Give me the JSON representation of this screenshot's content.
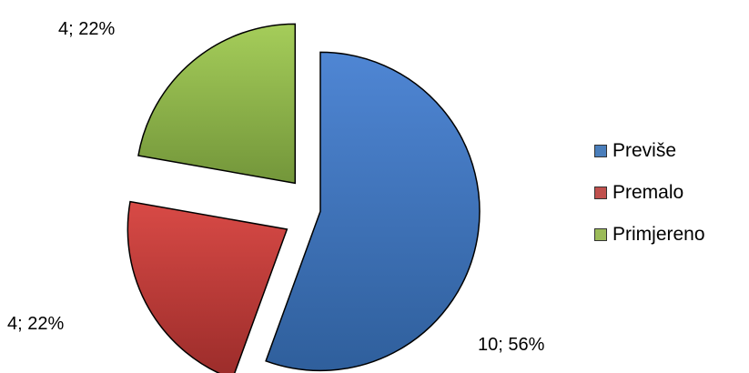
{
  "chart_data": {
    "type": "pie",
    "exploded": true,
    "categories": [
      "Previše",
      "Premalo",
      "Primjereno"
    ],
    "values": [
      10,
      4,
      4
    ],
    "percentages": [
      56,
      22,
      22
    ],
    "data_labels": [
      "10; 56%",
      "4; 22%",
      "4; 22%"
    ],
    "colors": [
      "#4a7ebb",
      "#c0504d",
      "#9bbb59"
    ],
    "title": "",
    "legend_position": "right"
  }
}
